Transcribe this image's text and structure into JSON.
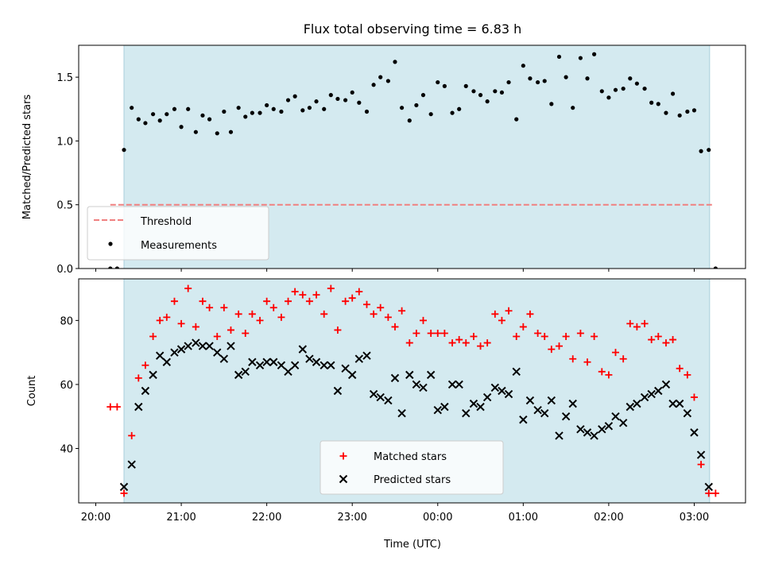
{
  "figure": {
    "title": "Flux total observing time = 6.83 h",
    "xlabel": "Time (UTC)",
    "xticks": [
      "20:00",
      "21:00",
      "22:00",
      "23:00",
      "00:00",
      "01:00",
      "02:00",
      "03:00"
    ],
    "observing_span_color": "#d4eaf0",
    "observing_span_edge_color": "#a9cfdc"
  },
  "chart_data": [
    {
      "type": "scatter",
      "ylabel": "Matched/Predicted stars",
      "ylim": [
        0,
        1.75
      ],
      "yticks": [
        "0.0",
        "0.5",
        "1.0",
        "1.5"
      ],
      "xlim_hours": [
        19.8,
        27.6
      ],
      "observing_span_hours": [
        20.33,
        27.18
      ],
      "threshold": {
        "name": "Threshold",
        "value": 0.5,
        "x_hours": [
          20.17,
          27.22
        ],
        "color": "#f08080"
      },
      "legend": {
        "placement": "lower-left",
        "entries": [
          "Threshold",
          "Measurements"
        ]
      },
      "series": [
        {
          "name": "Measurements",
          "color": "#000000",
          "x": [
            20.17,
            20.25,
            20.33,
            20.42,
            20.5,
            20.58,
            20.67,
            20.75,
            20.83,
            20.92,
            21.0,
            21.08,
            21.17,
            21.25,
            21.33,
            21.42,
            21.5,
            21.58,
            21.67,
            21.75,
            21.83,
            21.92,
            22.0,
            22.08,
            22.17,
            22.25,
            22.33,
            22.42,
            22.5,
            22.58,
            22.67,
            22.75,
            22.83,
            22.92,
            23.0,
            23.08,
            23.17,
            23.25,
            23.33,
            23.42,
            23.5,
            23.58,
            23.67,
            23.75,
            23.83,
            23.92,
            24.0,
            24.08,
            24.17,
            24.25,
            24.33,
            24.42,
            24.5,
            24.58,
            24.67,
            24.75,
            24.83,
            24.92,
            25.0,
            25.08,
            25.17,
            25.25,
            25.33,
            25.42,
            25.5,
            25.58,
            25.67,
            25.75,
            25.83,
            25.92,
            26.0,
            26.08,
            26.17,
            26.25,
            26.33,
            26.42,
            26.5,
            26.58,
            26.67,
            26.75,
            26.83,
            26.92,
            27.0,
            27.08,
            27.17,
            27.25
          ],
          "y": [
            0.0,
            0.0,
            0.93,
            1.26,
            1.17,
            1.14,
            1.21,
            1.16,
            1.21,
            1.25,
            1.11,
            1.25,
            1.07,
            1.2,
            1.17,
            1.06,
            1.23,
            1.07,
            1.26,
            1.19,
            1.22,
            1.22,
            1.28,
            1.25,
            1.23,
            1.32,
            1.35,
            1.24,
            1.26,
            1.31,
            1.25,
            1.36,
            1.33,
            1.32,
            1.38,
            1.3,
            1.23,
            1.44,
            1.5,
            1.47,
            1.62,
            1.26,
            1.16,
            1.28,
            1.36,
            1.21,
            1.46,
            1.43,
            1.22,
            1.25,
            1.43,
            1.39,
            1.36,
            1.31,
            1.39,
            1.38,
            1.46,
            1.17,
            1.59,
            1.49,
            1.46,
            1.47,
            1.29,
            1.66,
            1.5,
            1.26,
            1.65,
            1.49,
            1.68,
            1.39,
            1.34,
            1.4,
            1.41,
            1.49,
            1.45,
            1.41,
            1.3,
            1.29,
            1.22,
            1.37,
            1.2,
            1.23,
            1.24,
            0.92,
            0.93,
            0.0
          ]
        }
      ]
    },
    {
      "type": "scatter",
      "ylabel": "Count",
      "ylim": [
        23,
        93
      ],
      "yticks": [
        "40",
        "60",
        "80"
      ],
      "xlim_hours": [
        19.8,
        27.6
      ],
      "observing_span_hours": [
        20.33,
        27.18
      ],
      "legend": {
        "placement": "lower-center",
        "entries": [
          "Matched stars",
          "Predicted stars"
        ]
      },
      "series": [
        {
          "name": "Matched stars",
          "marker": "plus",
          "color": "#ff0000",
          "x": [
            20.17,
            20.25,
            20.33,
            20.42,
            20.5,
            20.58,
            20.67,
            20.75,
            20.83,
            20.92,
            21.0,
            21.08,
            21.17,
            21.25,
            21.33,
            21.42,
            21.5,
            21.58,
            21.67,
            21.75,
            21.83,
            21.92,
            22.0,
            22.08,
            22.17,
            22.25,
            22.33,
            22.42,
            22.5,
            22.58,
            22.67,
            22.75,
            22.83,
            22.92,
            23.0,
            23.08,
            23.17,
            23.25,
            23.33,
            23.42,
            23.5,
            23.58,
            23.67,
            23.75,
            23.83,
            23.92,
            24.0,
            24.08,
            24.17,
            24.25,
            24.33,
            24.42,
            24.5,
            24.58,
            24.67,
            24.75,
            24.83,
            24.92,
            25.0,
            25.08,
            25.17,
            25.25,
            25.33,
            25.42,
            25.5,
            25.58,
            25.67,
            25.75,
            25.83,
            25.92,
            26.0,
            26.08,
            26.17,
            26.25,
            26.33,
            26.42,
            26.5,
            26.58,
            26.67,
            26.75,
            26.83,
            26.92,
            27.0,
            27.08,
            27.17,
            27.25
          ],
          "y": [
            53,
            53,
            26,
            44,
            62,
            66,
            75,
            80,
            81,
            86,
            79,
            90,
            78,
            86,
            84,
            75,
            84,
            77,
            82,
            76,
            82,
            80,
            86,
            84,
            81,
            86,
            89,
            88,
            86,
            88,
            82,
            90,
            77,
            86,
            87,
            89,
            85,
            82,
            84,
            81,
            78,
            83,
            73,
            76,
            80,
            76,
            76,
            76,
            73,
            74,
            73,
            75,
            72,
            73,
            82,
            80,
            83,
            75,
            78,
            82,
            76,
            75,
            71,
            72,
            75,
            68,
            76,
            67,
            75,
            64,
            63,
            70,
            68,
            79,
            78,
            79,
            74,
            75,
            73,
            74,
            65,
            63,
            56,
            35,
            26,
            26
          ]
        },
        {
          "name": "Predicted stars",
          "marker": "x",
          "color": "#000000",
          "x": [
            20.33,
            20.42,
            20.5,
            20.58,
            20.67,
            20.75,
            20.83,
            20.92,
            21.0,
            21.08,
            21.17,
            21.25,
            21.33,
            21.42,
            21.5,
            21.58,
            21.67,
            21.75,
            21.83,
            21.92,
            22.0,
            22.08,
            22.17,
            22.25,
            22.33,
            22.42,
            22.5,
            22.58,
            22.67,
            22.75,
            22.83,
            22.92,
            23.0,
            23.08,
            23.17,
            23.25,
            23.33,
            23.42,
            23.5,
            23.58,
            23.67,
            23.75,
            23.83,
            23.92,
            24.0,
            24.08,
            24.17,
            24.25,
            24.33,
            24.42,
            24.5,
            24.58,
            24.67,
            24.75,
            24.83,
            24.92,
            25.0,
            25.08,
            25.17,
            25.25,
            25.33,
            25.42,
            25.5,
            25.58,
            25.67,
            25.75,
            25.83,
            25.92,
            26.0,
            26.08,
            26.17,
            26.25,
            26.33,
            26.42,
            26.5,
            26.58,
            26.67,
            26.75,
            26.83,
            26.92,
            27.0,
            27.08,
            27.17
          ],
          "y": [
            28,
            35,
            53,
            58,
            63,
            69,
            67,
            70,
            71,
            72,
            73,
            72,
            72,
            70,
            68,
            72,
            63,
            64,
            67,
            66,
            67,
            67,
            66,
            64,
            66,
            71,
            68,
            67,
            66,
            66,
            58,
            65,
            63,
            68,
            69,
            57,
            56,
            55,
            62,
            51,
            63,
            60,
            59,
            63,
            52,
            53,
            60,
            60,
            51,
            54,
            53,
            56,
            59,
            58,
            57,
            64,
            49,
            55,
            52,
            51,
            55,
            44,
            50,
            54,
            46,
            45,
            44,
            46,
            47,
            50,
            48,
            53,
            54,
            56,
            57,
            58,
            60,
            54,
            54,
            51,
            45,
            38,
            28
          ]
        }
      ]
    }
  ]
}
